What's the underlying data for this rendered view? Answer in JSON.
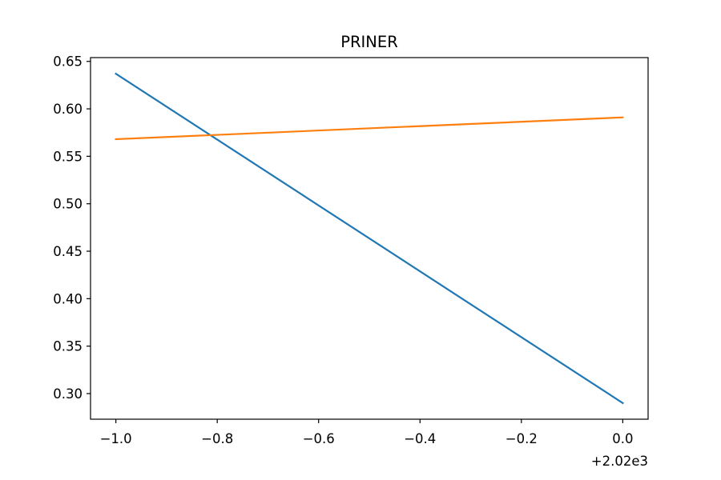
{
  "colors": {
    "background": "#ffffff",
    "axes": "#000000",
    "series_1": "#1f77b4",
    "series_2": "#ff7f0e"
  },
  "chart_data": {
    "type": "line",
    "title": "PRINER",
    "xlabel": "",
    "ylabel": "",
    "x_offset_label": "+2.02e3",
    "xlim": [
      2018.95,
      2020.05
    ],
    "ylim": [
      0.273,
      0.654
    ],
    "grid": false,
    "legend": "none",
    "x": [
      2019,
      2020
    ],
    "series": [
      {
        "values": [
          0.637,
          0.29
        ],
        "color": "#1f77b4"
      },
      {
        "values": [
          0.568,
          0.591
        ],
        "color": "#ff7f0e"
      }
    ],
    "xticks": [
      {
        "value": 2019.0,
        "label": "−1.0"
      },
      {
        "value": 2019.2,
        "label": "−0.8"
      },
      {
        "value": 2019.4,
        "label": "−0.6"
      },
      {
        "value": 2019.6,
        "label": "−0.4"
      },
      {
        "value": 2019.8,
        "label": "−0.2"
      },
      {
        "value": 2020.0,
        "label": "0.0"
      }
    ],
    "yticks": [
      {
        "value": 0.3,
        "label": "0.30"
      },
      {
        "value": 0.35,
        "label": "0.35"
      },
      {
        "value": 0.4,
        "label": "0.40"
      },
      {
        "value": 0.45,
        "label": "0.45"
      },
      {
        "value": 0.5,
        "label": "0.50"
      },
      {
        "value": 0.55,
        "label": "0.55"
      },
      {
        "value": 0.6,
        "label": "0.60"
      },
      {
        "value": 0.65,
        "label": "0.65"
      }
    ]
  }
}
